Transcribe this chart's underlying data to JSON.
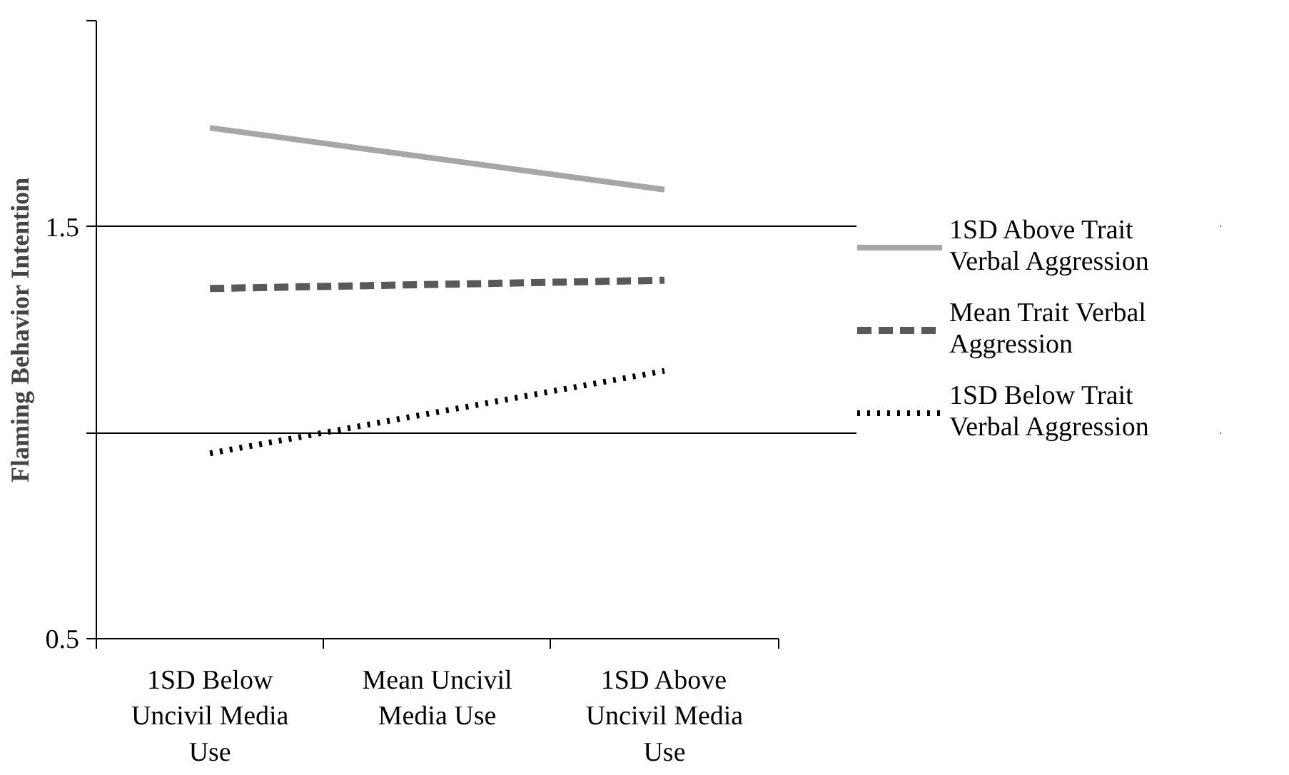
{
  "chart_data": {
    "type": "line",
    "ylabel": "Flaming Behavior Intention",
    "categories": [
      "1SD Below Uncivil Media Use",
      "Mean Uncivil Media Use",
      "1SD Above Uncivil Media Use"
    ],
    "series": [
      {
        "name": "1SD Above Trait Verbal Aggression",
        "color": "#a6a6a6",
        "line_style": "solid",
        "values": [
          1.74,
          1.665,
          1.59
        ]
      },
      {
        "name": "Mean Trait Verbal Aggression",
        "color": "#595959",
        "line_style": "dashed",
        "values": [
          1.35,
          1.36,
          1.37
        ]
      },
      {
        "name": "1SD Below Trait Verbal Aggression",
        "color": "#000000",
        "line_style": "dotted",
        "values": [
          0.95,
          1.05,
          1.15
        ]
      }
    ],
    "ylim": [
      0.5,
      2.0
    ],
    "yticks": [
      0.5,
      {
        "value": 1.0,
        "label": null
      },
      1.5,
      {
        "value": 2.0,
        "label": null
      }
    ],
    "grid": "y",
    "legend": "right",
    "marker": "none"
  }
}
